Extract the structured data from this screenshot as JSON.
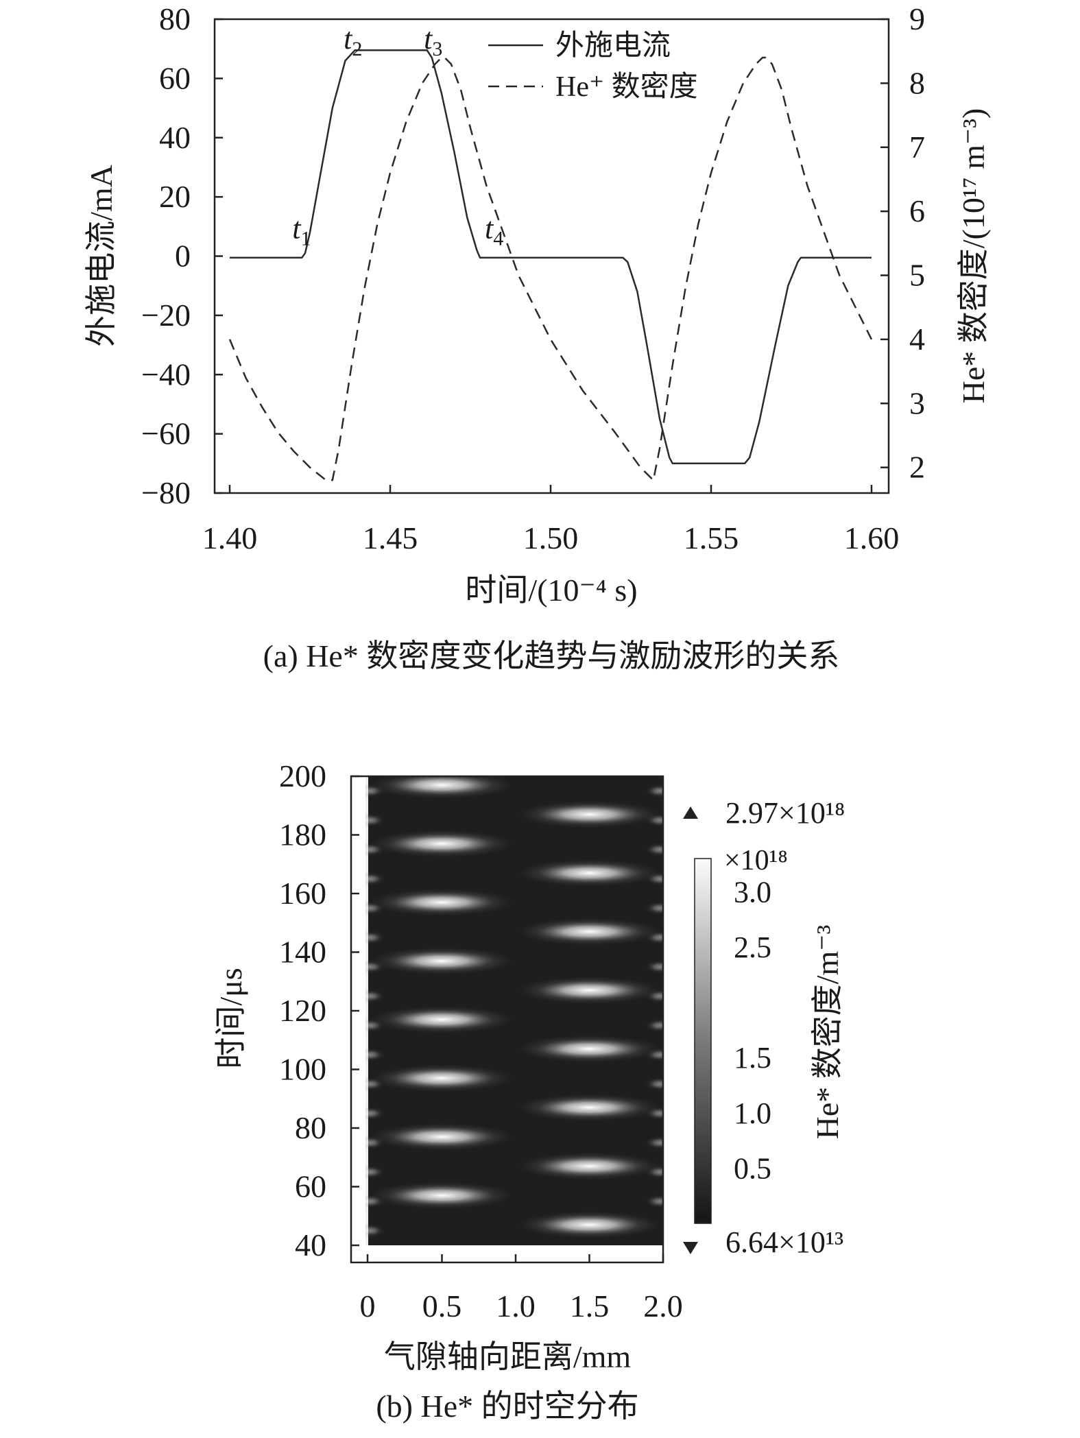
{
  "chart_data": [
    {
      "type": "line",
      "caption": "(a) He* 数密度变化趋势与激励波形的关系",
      "xlabel": "时间/(10⁻⁴ s)",
      "ylabel_left": "外施电流/mA",
      "ylabel_right": "He* 数密度/(10¹⁷ m⁻³)",
      "xlim": [
        1.4,
        1.6
      ],
      "ylim_left": [
        -80,
        80
      ],
      "ylim_right": [
        1.6,
        9
      ],
      "x_ticks": [
        "1.40",
        "1.45",
        "1.50",
        "1.55",
        "1.60"
      ],
      "y_ticks_left": [
        "80",
        "60",
        "40",
        "20",
        "0",
        "−20",
        "−40",
        "−60",
        "−80"
      ],
      "y_ticks_right": [
        "9",
        "8",
        "7",
        "6",
        "5",
        "4",
        "3",
        "2"
      ],
      "legend_position": "top",
      "series": [
        {
          "name": "外施电流",
          "style": "solid",
          "axis": "left",
          "x": [
            1.4,
            1.4225,
            1.4235,
            1.425,
            1.428,
            1.432,
            1.436,
            1.439,
            1.44,
            1.4615,
            1.463,
            1.466,
            1.47,
            1.474,
            1.477,
            1.478,
            1.5225,
            1.524,
            1.527,
            1.53,
            1.534,
            1.537,
            1.538,
            1.5605,
            1.562,
            1.565,
            1.57,
            1.574,
            1.577,
            1.578,
            1.6
          ],
          "y": [
            -0.5,
            -0.5,
            1,
            8,
            26,
            50,
            66,
            69.5,
            69.5,
            69.5,
            67,
            55,
            35,
            13,
            2,
            -0.5,
            -0.5,
            -2,
            -12,
            -30,
            -55,
            -68,
            -70,
            -70,
            -68,
            -56,
            -30,
            -10,
            -2,
            -0.5,
            -0.5
          ]
        },
        {
          "name": "He⁺ 数密度",
          "style": "dashed",
          "axis": "right",
          "x": [
            1.4,
            1.405,
            1.41,
            1.415,
            1.42,
            1.425,
            1.43,
            1.432,
            1.434,
            1.438,
            1.442,
            1.446,
            1.45,
            1.455,
            1.46,
            1.464,
            1.466,
            1.467,
            1.469,
            1.472,
            1.475,
            1.48,
            1.49,
            1.5,
            1.51,
            1.52,
            1.528,
            1.532,
            1.534,
            1.538,
            1.542,
            1.546,
            1.55,
            1.555,
            1.56,
            1.564,
            1.566,
            1.567,
            1.569,
            1.572,
            1.575,
            1.58,
            1.59,
            1.6
          ],
          "y": [
            4.0,
            3.4,
            2.95,
            2.55,
            2.25,
            2.0,
            1.8,
            1.8,
            2.3,
            3.6,
            4.8,
            5.8,
            6.6,
            7.4,
            8.0,
            8.3,
            8.4,
            8.4,
            8.3,
            7.9,
            7.3,
            6.4,
            5.0,
            4.0,
            3.2,
            2.55,
            2.0,
            1.8,
            2.3,
            3.6,
            4.8,
            5.8,
            6.6,
            7.4,
            8.0,
            8.3,
            8.4,
            8.4,
            8.3,
            7.9,
            7.3,
            6.4,
            5.0,
            4.0
          ]
        }
      ],
      "annotations": [
        {
          "text": "t",
          "sub": "1",
          "x": 1.4195,
          "y": 6
        },
        {
          "text": "t",
          "sub": "2",
          "x": 1.4355,
          "y": 70
        },
        {
          "text": "t",
          "sub": "3",
          "x": 1.4605,
          "y": 70
        },
        {
          "text": "t",
          "sub": "4",
          "x": 1.4795,
          "y": 6
        }
      ]
    },
    {
      "type": "heatmap",
      "caption": "(b) He* 的时空分布",
      "xlabel": "气隙轴向距离/mm",
      "ylabel": "时间/μs",
      "xlim": [
        -0.1,
        2.0
      ],
      "ylim": [
        40,
        200
      ],
      "x_ticks": [
        "0",
        "0.5",
        "1.0",
        "1.5",
        "2.0"
      ],
      "y_ticks": [
        "200",
        "180",
        "160",
        "140",
        "120",
        "100",
        "80",
        "60",
        "40"
      ],
      "colormap": "gray",
      "background_color": "#1e1e1e",
      "peaks_x_mm": [
        0.5,
        1.5
      ],
      "peaks_time_us_at_0_5mm": [
        57,
        77,
        97,
        117,
        137,
        157,
        177,
        197
      ],
      "peaks_time_us_at_1_5mm": [
        47,
        67,
        87,
        107,
        127,
        147,
        167,
        187
      ],
      "colorbar": {
        "title": "He* 数密度/m⁻³",
        "multiplier": "×10¹⁸",
        "ticks": [
          "3.0",
          "2.5",
          "1.5",
          "1.0",
          "0.5"
        ],
        "tick_values": [
          3.0,
          2.5,
          1.5,
          1.0,
          0.5
        ],
        "range": [
          0.0,
          3.3
        ],
        "max_label": "2.97×10¹⁸",
        "min_label": "6.64×10¹³"
      }
    }
  ]
}
